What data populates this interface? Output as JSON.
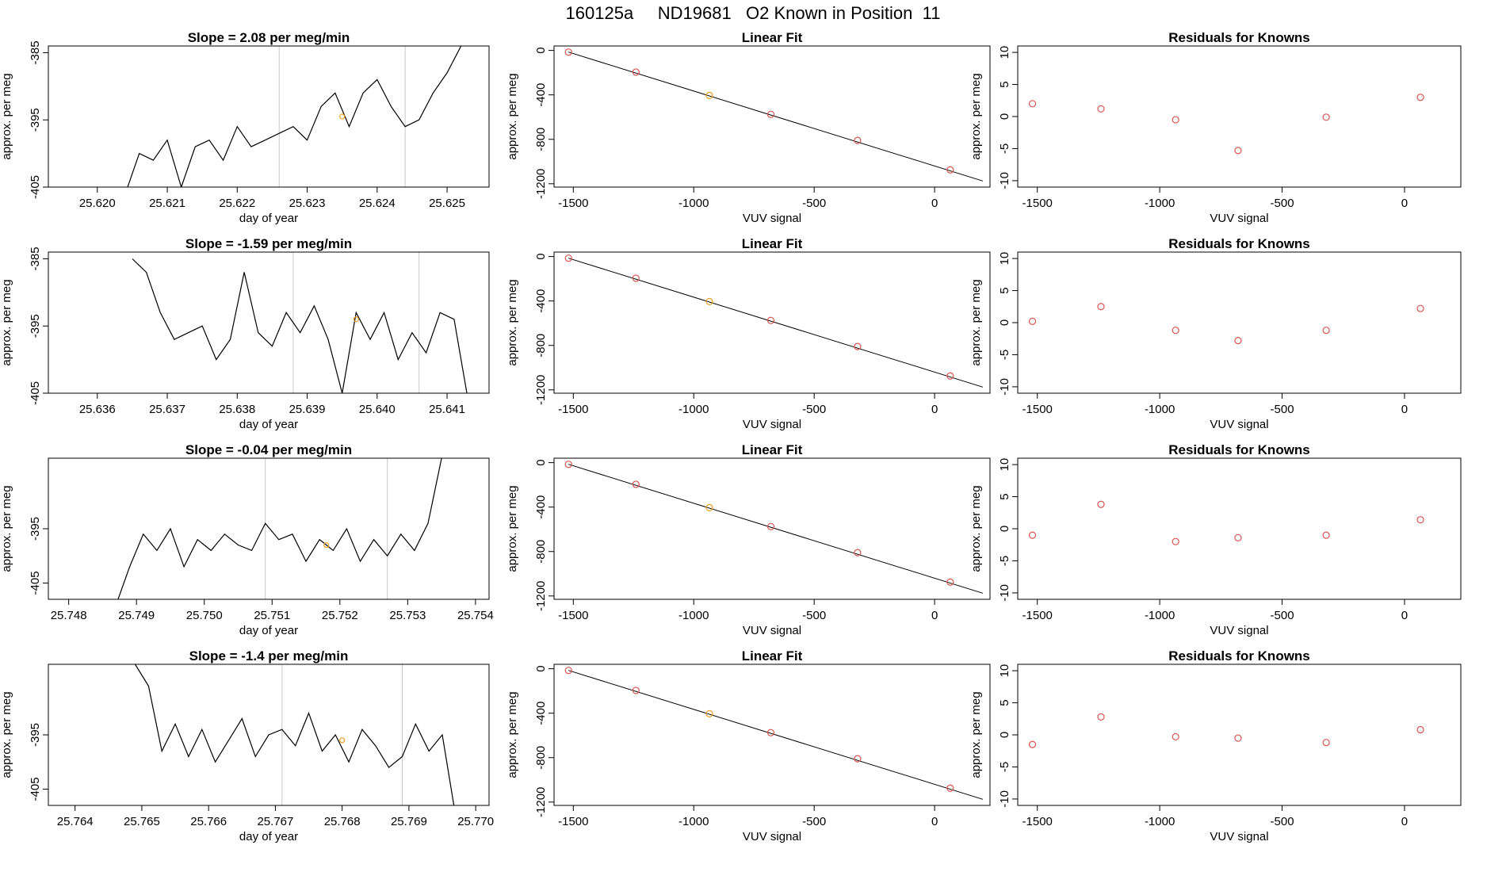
{
  "main_title": "160125a     ND19681   O2 Known in Position  11",
  "colors": {
    "line": "#000000",
    "point_red": "#d9534f",
    "point_orange": "#f0a020",
    "vline": "#c8c8c8"
  },
  "chart_data": [
    {
      "type": "line",
      "row": 0,
      "panel": "timeseries",
      "title": "Slope =  2.08  per meg/min",
      "xlabel": "day of year",
      "ylabel": "approx. per meg",
      "xlim": [
        25.6193,
        25.6256
      ],
      "ylim": [
        -405,
        -384
      ],
      "xticks": [
        "25.620",
        "25.621",
        "25.622",
        "25.623",
        "25.624",
        "25.625"
      ],
      "yticks": [
        "-385",
        "-395",
        "-405"
      ],
      "vlines": [
        25.6226,
        25.6244
      ],
      "marker": {
        "x": 25.6235,
        "y": -394.5
      },
      "x": [
        25.6204,
        25.6206,
        25.6208,
        25.621,
        25.6212,
        25.6214,
        25.6216,
        25.6218,
        25.622,
        25.6222,
        25.6224,
        25.6226,
        25.6228,
        25.623,
        25.6232,
        25.6234,
        25.6236,
        25.6238,
        25.624,
        25.6242,
        25.6244,
        25.6246,
        25.6248,
        25.625,
        25.6252
      ],
      "y": [
        -406,
        -400,
        -401,
        -398,
        -405,
        -399,
        -398,
        -401,
        -396,
        -399,
        -398,
        -397,
        -396,
        -398,
        -393,
        -391,
        -396,
        -391,
        -389,
        -393,
        -396,
        -395,
        -391,
        -388,
        -384
      ]
    },
    {
      "type": "scatter",
      "row": 0,
      "panel": "linear-fit",
      "title": "Linear Fit",
      "xlabel": "VUV signal",
      "ylabel": "approx. per meg",
      "xlim": [
        -1580,
        230
      ],
      "ylim": [
        -1230,
        40
      ],
      "xticks": [
        "-1500",
        "-1000",
        "-500",
        "0"
      ],
      "yticks": [
        "0",
        "-400",
        "-800",
        "-1200"
      ],
      "fit_line": {
        "x": [
          -1520,
          200
        ],
        "y": [
          -15,
          -1175
        ]
      },
      "x": [
        -1520,
        -1240,
        -935,
        -680,
        -320,
        65
      ],
      "y": [
        -15,
        -195,
        -405,
        -575,
        -810,
        -1075
      ],
      "highlight_index": 2
    },
    {
      "type": "scatter",
      "row": 0,
      "panel": "residuals",
      "title": "Residuals for Knowns",
      "xlabel": "VUV signal",
      "ylabel": "approx. per meg",
      "xlim": [
        -1580,
        230
      ],
      "ylim": [
        -11,
        11
      ],
      "xticks": [
        "-1500",
        "-1000",
        "-500",
        "0"
      ],
      "yticks": [
        "10",
        "5",
        "0",
        "-5",
        "-10"
      ],
      "x": [
        -1520,
        -1240,
        -935,
        -680,
        -320,
        65
      ],
      "y": [
        2,
        1.2,
        -0.5,
        -5.3,
        -0.1,
        3
      ]
    },
    {
      "type": "line",
      "row": 1,
      "panel": "timeseries",
      "title": "Slope =  -1.59  per meg/min",
      "xlabel": "day of year",
      "ylabel": "approx. per meg",
      "xlim": [
        25.6353,
        25.6416
      ],
      "ylim": [
        -405,
        -384
      ],
      "xticks": [
        "25.636",
        "25.637",
        "25.638",
        "25.639",
        "25.640",
        "25.641"
      ],
      "yticks": [
        "-385",
        "-395",
        "-405"
      ],
      "vlines": [
        25.6388,
        25.6406
      ],
      "marker": {
        "x": 25.6397,
        "y": -394
      },
      "x": [
        25.6365,
        25.6367,
        25.6369,
        25.6371,
        25.6373,
        25.6375,
        25.6377,
        25.6379,
        25.6381,
        25.6383,
        25.6385,
        25.6387,
        25.6389,
        25.6391,
        25.6393,
        25.6395,
        25.6397,
        25.6399,
        25.6401,
        25.6403,
        25.6405,
        25.6407,
        25.6409,
        25.6411,
        25.6413
      ],
      "y": [
        -385,
        -387,
        -393,
        -397,
        -396,
        -395,
        -400,
        -397,
        -387,
        -396,
        -398,
        -393,
        -396,
        -392,
        -397,
        -405,
        -393,
        -397,
        -393,
        -400,
        -396,
        -399,
        -393,
        -394,
        -406
      ]
    },
    {
      "type": "scatter",
      "row": 1,
      "panel": "linear-fit",
      "title": "Linear Fit",
      "xlabel": "VUV signal",
      "ylabel": "approx. per meg",
      "xlim": [
        -1580,
        230
      ],
      "ylim": [
        -1230,
        40
      ],
      "xticks": [
        "-1500",
        "-1000",
        "-500",
        "0"
      ],
      "yticks": [
        "0",
        "-400",
        "-800",
        "-1200"
      ],
      "fit_line": {
        "x": [
          -1520,
          200
        ],
        "y": [
          -15,
          -1175
        ]
      },
      "x": [
        -1520,
        -1240,
        -935,
        -680,
        -320,
        65
      ],
      "y": [
        -15,
        -195,
        -405,
        -575,
        -810,
        -1075
      ],
      "highlight_index": 2
    },
    {
      "type": "scatter",
      "row": 1,
      "panel": "residuals",
      "title": "Residuals for Knowns",
      "xlabel": "VUV signal",
      "ylabel": "approx. per meg",
      "xlim": [
        -1580,
        230
      ],
      "ylim": [
        -11,
        11
      ],
      "xticks": [
        "-1500",
        "-1000",
        "-500",
        "0"
      ],
      "yticks": [
        "10",
        "5",
        "0",
        "-5",
        "-10"
      ],
      "x": [
        -1520,
        -1240,
        -935,
        -680,
        -320,
        65
      ],
      "y": [
        0.2,
        2.5,
        -1.2,
        -2.8,
        -1.2,
        2.2
      ]
    },
    {
      "type": "line",
      "row": 2,
      "panel": "timeseries",
      "title": "Slope =  -0.04  per meg/min",
      "xlabel": "day of year",
      "ylabel": "approx. per meg",
      "xlim": [
        25.7477,
        25.7542
      ],
      "ylim": [
        -408,
        -382
      ],
      "xticks": [
        "25.748",
        "25.749",
        "25.750",
        "25.751",
        "25.752",
        "25.753",
        "25.754"
      ],
      "yticks": [
        "-395",
        "-405"
      ],
      "vlines": [
        25.7509,
        25.7527
      ],
      "marker": {
        "x": 25.7518,
        "y": -398
      },
      "x": [
        25.7487,
        25.7489,
        25.7491,
        25.7493,
        25.7495,
        25.7497,
        25.7499,
        25.7501,
        25.7503,
        25.7505,
        25.7507,
        25.7509,
        25.7511,
        25.7513,
        25.7515,
        25.7517,
        25.7519,
        25.7521,
        25.7523,
        25.7525,
        25.7527,
        25.7529,
        25.7531,
        25.7533,
        25.7535
      ],
      "y": [
        -409,
        -402,
        -396,
        -399,
        -395,
        -402,
        -397,
        -399,
        -396,
        -398,
        -399,
        -394,
        -397,
        -396,
        -401,
        -397,
        -399,
        -395,
        -401,
        -397,
        -400,
        -396,
        -399,
        -394,
        -382
      ]
    },
    {
      "type": "scatter",
      "row": 2,
      "panel": "linear-fit",
      "title": "Linear Fit",
      "xlabel": "VUV signal",
      "ylabel": "approx. per meg",
      "xlim": [
        -1580,
        230
      ],
      "ylim": [
        -1230,
        40
      ],
      "xticks": [
        "-1500",
        "-1000",
        "-500",
        "0"
      ],
      "yticks": [
        "0",
        "-400",
        "-800",
        "-1200"
      ],
      "fit_line": {
        "x": [
          -1520,
          200
        ],
        "y": [
          -15,
          -1175
        ]
      },
      "x": [
        -1520,
        -1240,
        -935,
        -680,
        -320,
        65
      ],
      "y": [
        -15,
        -195,
        -405,
        -575,
        -810,
        -1075
      ],
      "highlight_index": 2
    },
    {
      "type": "scatter",
      "row": 2,
      "panel": "residuals",
      "title": "Residuals for Knowns",
      "xlabel": "VUV signal",
      "ylabel": "approx. per meg",
      "xlim": [
        -1580,
        230
      ],
      "ylim": [
        -11,
        11
      ],
      "xticks": [
        "-1500",
        "-1000",
        "-500",
        "0"
      ],
      "yticks": [
        "10",
        "5",
        "0",
        "-5",
        "-10"
      ],
      "x": [
        -1520,
        -1240,
        -935,
        -680,
        -320,
        65
      ],
      "y": [
        -1,
        3.8,
        -2,
        -1.4,
        -1,
        1.4
      ]
    },
    {
      "type": "line",
      "row": 3,
      "panel": "timeseries",
      "title": "Slope =  -1.4  per meg/min",
      "xlabel": "day of year",
      "ylabel": "approx. per meg",
      "xlim": [
        25.7636,
        25.7702
      ],
      "ylim": [
        -408,
        -382
      ],
      "xticks": [
        "25.764",
        "25.765",
        "25.766",
        "25.767",
        "25.768",
        "25.769",
        "25.770"
      ],
      "yticks": [
        "-395",
        "-405"
      ],
      "vlines": [
        25.7671,
        25.7689
      ],
      "marker": {
        "x": 25.768,
        "y": -396
      },
      "x": [
        25.7649,
        25.7651,
        25.7653,
        25.7655,
        25.7657,
        25.7659,
        25.7661,
        25.7663,
        25.7665,
        25.7667,
        25.7669,
        25.7671,
        25.7673,
        25.7675,
        25.7677,
        25.7679,
        25.7681,
        25.7683,
        25.7685,
        25.7687,
        25.7689,
        25.7691,
        25.7693,
        25.7695,
        25.7697
      ],
      "y": [
        -382,
        -386,
        -398,
        -393,
        -399,
        -394,
        -400,
        -396,
        -392,
        -399,
        -395,
        -394,
        -397,
        -391,
        -398,
        -395,
        -400,
        -394,
        -397,
        -401,
        -399,
        -393,
        -398,
        -395,
        -410
      ]
    },
    {
      "type": "scatter",
      "row": 3,
      "panel": "linear-fit",
      "title": "Linear Fit",
      "xlabel": "VUV signal",
      "ylabel": "approx. per meg",
      "xlim": [
        -1580,
        230
      ],
      "ylim": [
        -1230,
        40
      ],
      "xticks": [
        "-1500",
        "-1000",
        "-500",
        "0"
      ],
      "yticks": [
        "0",
        "-400",
        "-800",
        "-1200"
      ],
      "fit_line": {
        "x": [
          -1520,
          200
        ],
        "y": [
          -15,
          -1175
        ]
      },
      "x": [
        -1520,
        -1240,
        -935,
        -680,
        -320,
        65
      ],
      "y": [
        -15,
        -195,
        -405,
        -575,
        -810,
        -1075
      ],
      "highlight_index": 2
    },
    {
      "type": "scatter",
      "row": 3,
      "panel": "residuals",
      "title": "Residuals for Knowns",
      "xlabel": "VUV signal",
      "ylabel": "approx. per meg",
      "xlim": [
        -1580,
        230
      ],
      "ylim": [
        -11,
        11
      ],
      "xticks": [
        "-1500",
        "-1000",
        "-500",
        "0"
      ],
      "yticks": [
        "10",
        "5",
        "0",
        "-5",
        "-10"
      ],
      "x": [
        -1520,
        -1240,
        -935,
        -680,
        -320,
        65
      ],
      "y": [
        -1.5,
        2.8,
        -0.3,
        -0.5,
        -1.2,
        0.8
      ]
    }
  ]
}
